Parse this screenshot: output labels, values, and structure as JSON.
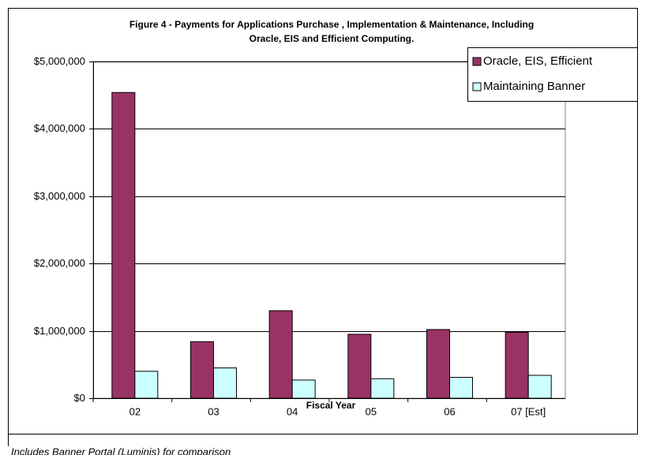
{
  "chart_data": {
    "type": "bar",
    "title": [
      "Figure 4 - Payments for Applications Purchase , Implementation & Maintenance, Including",
      "Oracle, EIS and Efficient Computing."
    ],
    "x_label": "Fiscal Year",
    "annotation": "Includes Banner Portal (Luminis) for comparison",
    "categories": [
      "02",
      "03",
      "04",
      "05",
      "06",
      "07 [Est]"
    ],
    "series": [
      {
        "name": "Oracle, EIS, Efficient",
        "color": "#993366",
        "values": [
          4540000,
          840000,
          1300000,
          950000,
          1020000,
          980000
        ]
      },
      {
        "name": "Maintaining Banner",
        "color": "#ccffff",
        "values": [
          400000,
          450000,
          270000,
          290000,
          310000,
          340000
        ]
      }
    ],
    "ylim": [
      0,
      5000000
    ],
    "yticks": [
      {
        "value": 0,
        "label": "$0"
      },
      {
        "value": 1000000,
        "label": "$1,000,000"
      },
      {
        "value": 2000000,
        "label": "$2,000,000"
      },
      {
        "value": 3000000,
        "label": "$3,000,000"
      },
      {
        "value": 4000000,
        "label": "$4,000,000"
      },
      {
        "value": 5000000,
        "label": "$5,000,000"
      }
    ],
    "grid": true,
    "legend": "top-right"
  }
}
